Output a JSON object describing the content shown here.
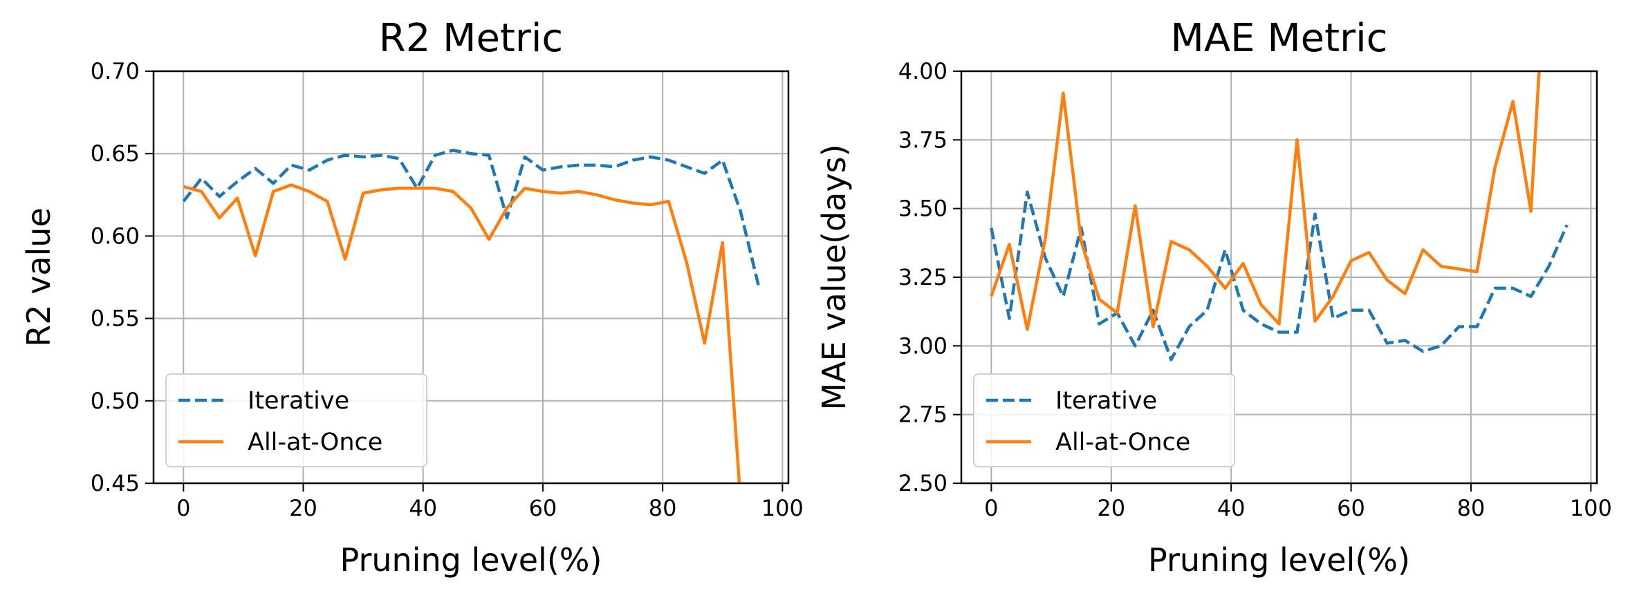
{
  "chart_data": [
    {
      "type": "line",
      "title": "R2 Metric",
      "xlabel": "Pruning level(%)",
      "ylabel": "R2 value",
      "xlim": [
        -5,
        101
      ],
      "ylim": [
        0.45,
        0.7
      ],
      "xticks": [
        0,
        20,
        40,
        60,
        80,
        100
      ],
      "yticks": [
        0.45,
        0.5,
        0.55,
        0.6,
        0.65,
        0.7
      ],
      "ytick_labels": [
        "0.45",
        "0.50",
        "0.55",
        "0.60",
        "0.65",
        "0.70"
      ],
      "grid": true,
      "legend_position": "lower-left",
      "series": [
        {
          "name": "Iterative",
          "color": "#1f77b4",
          "style": "dashed",
          "x": [
            0,
            3,
            6,
            9,
            12,
            15,
            18,
            21,
            24,
            27,
            30,
            33,
            36,
            39,
            42,
            45,
            48,
            51,
            54,
            57,
            60,
            63,
            66,
            69,
            72,
            75,
            78,
            81,
            84,
            87,
            90,
            93,
            96
          ],
          "y": [
            0.621,
            0.635,
            0.624,
            0.633,
            0.641,
            0.632,
            0.643,
            0.64,
            0.646,
            0.649,
            0.648,
            0.649,
            0.647,
            0.629,
            0.649,
            0.652,
            0.65,
            0.649,
            0.611,
            0.648,
            0.64,
            0.642,
            0.643,
            0.643,
            0.642,
            0.646,
            0.648,
            0.646,
            0.642,
            0.638,
            0.646,
            0.615,
            0.57
          ]
        },
        {
          "name": "All-at-Once",
          "color": "#ff7f0e",
          "style": "solid",
          "x": [
            0,
            3,
            6,
            9,
            12,
            15,
            18,
            21,
            24,
            27,
            30,
            33,
            36,
            39,
            42,
            45,
            48,
            51,
            54,
            57,
            60,
            63,
            66,
            69,
            72,
            75,
            78,
            81,
            84,
            87,
            90,
            93
          ],
          "y": [
            0.63,
            0.627,
            0.611,
            0.623,
            0.588,
            0.627,
            0.631,
            0.627,
            0.621,
            0.586,
            0.626,
            0.628,
            0.629,
            0.629,
            0.629,
            0.627,
            0.617,
            0.598,
            0.617,
            0.629,
            0.627,
            0.626,
            0.627,
            0.625,
            0.622,
            0.62,
            0.619,
            0.621,
            0.584,
            0.535,
            0.596,
            0.44
          ]
        }
      ]
    },
    {
      "type": "line",
      "title": "MAE Metric",
      "xlabel": "Pruning level(%)",
      "ylabel": "MAE value(days)",
      "xlim": [
        -5,
        101
      ],
      "ylim": [
        2.5,
        4.0
      ],
      "xticks": [
        0,
        20,
        40,
        60,
        80,
        100
      ],
      "yticks": [
        2.5,
        2.75,
        3.0,
        3.25,
        3.5,
        3.75,
        4.0
      ],
      "ytick_labels": [
        "2.50",
        "2.75",
        "3.00",
        "3.25",
        "3.50",
        "3.75",
        "4.00"
      ],
      "grid": true,
      "legend_position": "lower-left",
      "series": [
        {
          "name": "Iterative",
          "color": "#1f77b4",
          "style": "dashed",
          "x": [
            0,
            3,
            6,
            9,
            12,
            15,
            18,
            21,
            24,
            27,
            30,
            33,
            36,
            39,
            42,
            45,
            48,
            51,
            54,
            57,
            60,
            63,
            66,
            69,
            72,
            75,
            78,
            81,
            84,
            87,
            90,
            93,
            96
          ],
          "y": [
            3.43,
            3.1,
            3.56,
            3.32,
            3.18,
            3.43,
            3.08,
            3.12,
            3.0,
            3.13,
            2.95,
            3.07,
            3.13,
            3.35,
            3.13,
            3.08,
            3.05,
            3.05,
            3.48,
            3.1,
            3.13,
            3.13,
            3.01,
            3.02,
            2.98,
            3.0,
            3.07,
            3.07,
            3.21,
            3.21,
            3.18,
            3.29,
            3.44
          ]
        },
        {
          "name": "All-at-Once",
          "color": "#ff7f0e",
          "style": "solid",
          "x": [
            0,
            3,
            6,
            9,
            12,
            15,
            18,
            21,
            24,
            27,
            30,
            33,
            36,
            39,
            42,
            45,
            48,
            51,
            54,
            57,
            60,
            63,
            66,
            69,
            72,
            75,
            78,
            81,
            84,
            87,
            90,
            91.5
          ],
          "y": [
            3.18,
            3.37,
            3.06,
            3.39,
            3.92,
            3.38,
            3.17,
            3.12,
            3.51,
            3.07,
            3.38,
            3.35,
            3.29,
            3.21,
            3.3,
            3.15,
            3.08,
            3.75,
            3.09,
            3.18,
            3.31,
            3.34,
            3.24,
            3.19,
            3.35,
            3.29,
            3.28,
            3.27,
            3.65,
            3.89,
            3.49,
            4.05
          ]
        }
      ]
    }
  ]
}
